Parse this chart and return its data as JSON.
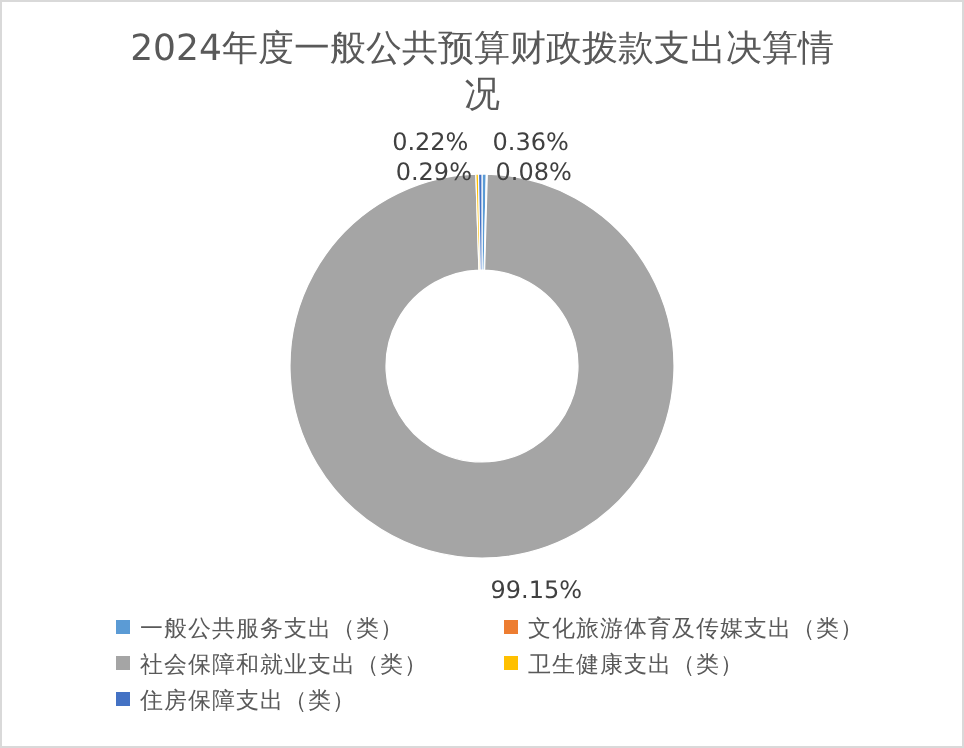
{
  "chart_data": {
    "type": "donut",
    "title": "2024年度一般公共预算财政拨款支出决算情况",
    "categories": [
      "一般公共服务支出（类）",
      "文化旅游体育及传媒支出（类）",
      "社会保障和就业支出（类）",
      "卫生健康支出（类）",
      "住房保障支出（类）"
    ],
    "values": [
      0.36,
      0.08,
      99.15,
      0.22,
      0.29
    ],
    "value_labels": [
      "0.36%",
      "0.08%",
      "99.15%",
      "0.22%",
      "0.29%"
    ],
    "colors": [
      "#5b9bd5",
      "#ed7d31",
      "#a5a5a5",
      "#ffc000",
      "#4472c4"
    ],
    "legend": "bottom"
  }
}
